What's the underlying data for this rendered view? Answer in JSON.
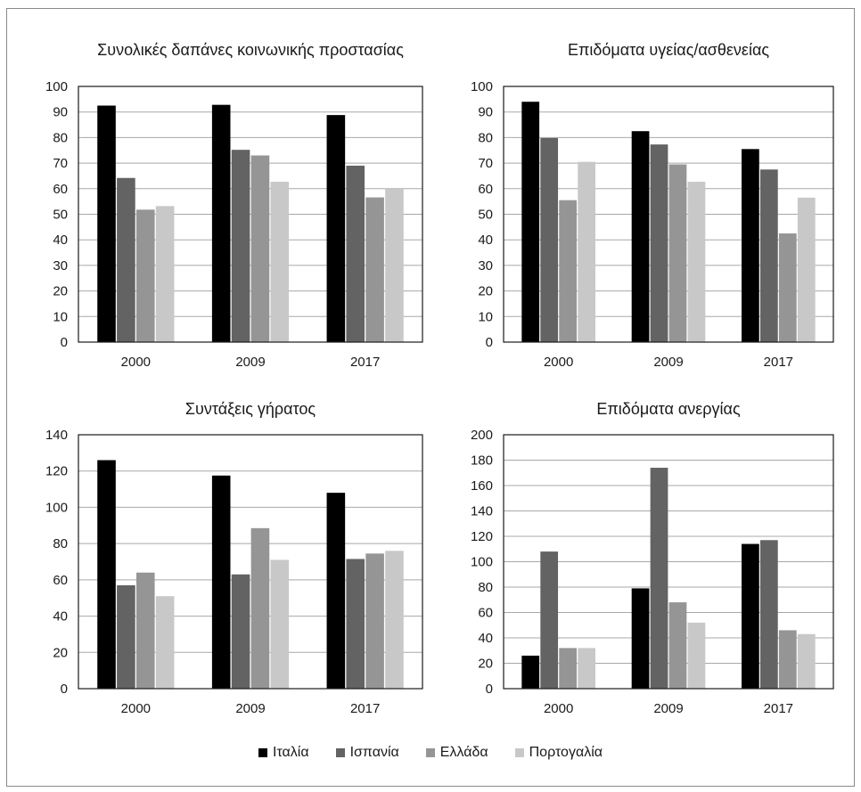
{
  "colors": {
    "Ιταλία": "#000000",
    "Ισπανία": "#636363",
    "Ελλάδα": "#959595",
    "Πορτογαλία": "#c8c8c8"
  },
  "legend": [
    "Ιταλία",
    "Ισπανία",
    "Ελλάδα",
    "Πορτογαλία"
  ],
  "chart_data": [
    {
      "type": "bar",
      "title": "Συνολικές δαπάνες κοινωνικής προστασίας",
      "categories": [
        "2000",
        "2009",
        "2017"
      ],
      "series": [
        {
          "name": "Ιταλία",
          "values": [
            92.5,
            92.8,
            88.8
          ]
        },
        {
          "name": "Ισπανία",
          "values": [
            64.2,
            75.2,
            69
          ]
        },
        {
          "name": "Ελλάδα",
          "values": [
            51.8,
            73,
            56.6
          ]
        },
        {
          "name": "Πορτογαλία",
          "values": [
            53.2,
            62.7,
            60
          ]
        }
      ],
      "ylim": [
        0,
        100
      ],
      "yticks": [
        0,
        10,
        20,
        30,
        40,
        50,
        60,
        70,
        80,
        90,
        100
      ],
      "grid": true
    },
    {
      "type": "bar",
      "title": "Επιδόματα υγείας/ασθενείας",
      "categories": [
        "2000",
        "2009",
        "2017"
      ],
      "series": [
        {
          "name": "Ιταλία",
          "values": [
            94,
            82.5,
            75.5
          ]
        },
        {
          "name": "Ισπανία",
          "values": [
            79.8,
            77.3,
            67.5
          ]
        },
        {
          "name": "Ελλάδα",
          "values": [
            55.5,
            69.5,
            42.5
          ]
        },
        {
          "name": "Πορτογαλία",
          "values": [
            70.5,
            62.7,
            56.5
          ]
        }
      ],
      "ylim": [
        0,
        100
      ],
      "yticks": [
        0,
        10,
        20,
        30,
        40,
        50,
        60,
        70,
        80,
        90,
        100
      ],
      "grid": true
    },
    {
      "type": "bar",
      "title": "Συντάξεις γήρατος",
      "categories": [
        "2000",
        "2009",
        "2017"
      ],
      "series": [
        {
          "name": "Ιταλία",
          "values": [
            126,
            117.5,
            108
          ]
        },
        {
          "name": "Ισπανία",
          "values": [
            57,
            63,
            71.5
          ]
        },
        {
          "name": "Ελλάδα",
          "values": [
            64,
            88.5,
            74.5
          ]
        },
        {
          "name": "Πορτογαλία",
          "values": [
            51,
            71,
            76
          ]
        }
      ],
      "ylim": [
        0,
        140
      ],
      "yticks": [
        0,
        20,
        40,
        60,
        80,
        100,
        120,
        140
      ],
      "grid": true
    },
    {
      "type": "bar",
      "title": "Επιδόματα ανεργίας",
      "categories": [
        "2000",
        "2009",
        "2017"
      ],
      "series": [
        {
          "name": "Ιταλία",
          "values": [
            26,
            79,
            114
          ]
        },
        {
          "name": "Ισπανία",
          "values": [
            108,
            174,
            117
          ]
        },
        {
          "name": "Ελλάδα",
          "values": [
            32,
            68,
            46
          ]
        },
        {
          "name": "Πορτογαλία",
          "values": [
            32,
            52,
            43
          ]
        }
      ],
      "ylim": [
        0,
        200
      ],
      "yticks": [
        0,
        20,
        40,
        60,
        80,
        100,
        120,
        140,
        160,
        180,
        200
      ],
      "grid": true
    }
  ]
}
